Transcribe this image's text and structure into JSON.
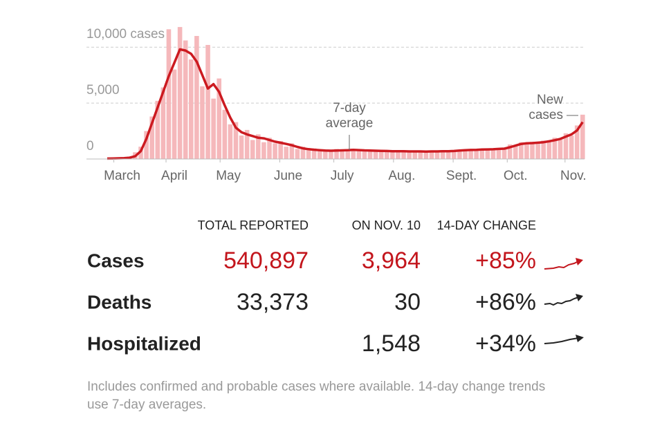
{
  "chart_data": {
    "type": "bar",
    "x": [
      0,
      3,
      6,
      9,
      12,
      15,
      18,
      21,
      24,
      27,
      30,
      33,
      36,
      39,
      42,
      45,
      48,
      51,
      54,
      57,
      60,
      63,
      66,
      69,
      72,
      75,
      78,
      81,
      84,
      87,
      90,
      93,
      96,
      99,
      102,
      105,
      108,
      111,
      114,
      117,
      120,
      123,
      126,
      129,
      132,
      135,
      138,
      141,
      144,
      147,
      150,
      153,
      156,
      159,
      162,
      165,
      168,
      171,
      174,
      177,
      180,
      183,
      186,
      189,
      192,
      195,
      198,
      201,
      204,
      207,
      210,
      213,
      216,
      219,
      222,
      225,
      228,
      231,
      234,
      237,
      240,
      243,
      246,
      249,
      252,
      255
    ],
    "series": [
      {
        "label": [
          "New",
          "cases"
        ],
        "color": "#f5b8bb",
        "values": [
          30,
          60,
          90,
          150,
          200,
          600,
          1100,
          2500,
          3800,
          5200,
          6400,
          11600,
          8000,
          11800,
          10600,
          8900,
          11000,
          6500,
          10200,
          5400,
          7200,
          4400,
          3100,
          3300,
          2100,
          2600,
          1700,
          2200,
          1500,
          1900,
          1400,
          1600,
          1100,
          1400,
          900,
          1100,
          800,
          950,
          700,
          850,
          650,
          900,
          700,
          900,
          750,
          850,
          700,
          820,
          690,
          780,
          650,
          760,
          640,
          720,
          620,
          740,
          610,
          720,
          640,
          730,
          650,
          750,
          680,
          820,
          740,
          880,
          760,
          900,
          800,
          950,
          850,
          1000,
          1300,
          1250,
          1500,
          1300,
          1550,
          1400,
          1650,
          1500,
          1900,
          1750,
          2300,
          2100,
          3000,
          3964
        ]
      },
      {
        "type": "line",
        "label": [
          "7-day",
          "average"
        ],
        "color": "#cc1a20",
        "values": [
          40,
          50,
          60,
          80,
          120,
          250,
          700,
          1800,
          3200,
          4600,
          6000,
          7400,
          8600,
          9800,
          9700,
          9400,
          8700,
          7500,
          6300,
          6700,
          6000,
          4800,
          3700,
          2800,
          2400,
          2200,
          2050,
          1900,
          1850,
          1700,
          1550,
          1450,
          1350,
          1230,
          1080,
          950,
          880,
          830,
          790,
          760,
          740,
          760,
          770,
          790,
          820,
          800,
          770,
          760,
          740,
          730,
          720,
          700,
          700,
          690,
          680,
          680,
          680,
          670,
          680,
          680,
          690,
          690,
          720,
          760,
          790,
          810,
          820,
          850,
          860,
          870,
          900,
          930,
          1050,
          1200,
          1350,
          1400,
          1420,
          1460,
          1500,
          1580,
          1680,
          1800,
          2000,
          2200,
          2550,
          3300
        ]
      }
    ],
    "xlim": [
      0,
      256
    ],
    "xticks": [
      {
        "value": 8,
        "label": "March"
      },
      {
        "value": 36,
        "label": "April"
      },
      {
        "value": 65,
        "label": "May"
      },
      {
        "value": 97,
        "label": "June"
      },
      {
        "value": 126,
        "label": "July"
      },
      {
        "value": 158,
        "label": "Aug."
      },
      {
        "value": 190,
        "label": "Sept."
      },
      {
        "value": 219,
        "label": "Oct."
      },
      {
        "value": 250,
        "label": "Nov."
      }
    ],
    "ylim": [
      0,
      12300
    ],
    "yticks": [
      0,
      {
        "value": 5000,
        "label": "5,000"
      },
      {
        "value": 10000,
        "label": "10,000 cases"
      }
    ],
    "grid": true
  },
  "table": {
    "columns": [
      "TOTAL REPORTED",
      "ON NOV. 10",
      "14-DAY CHANGE"
    ],
    "rows": [
      [
        "Cases",
        "540,897",
        "3,964",
        "+85%"
      ],
      [
        "Deaths",
        "33,373",
        "30",
        "+86%"
      ],
      [
        "Hospitalized",
        null,
        "1,548",
        "+34%"
      ]
    ],
    "row_colors": [
      "#c3161d",
      "#222222",
      "#222222"
    ]
  },
  "footnote": "Includes confirmed and probable cases where available. 14-day change trends use 7-day averages."
}
